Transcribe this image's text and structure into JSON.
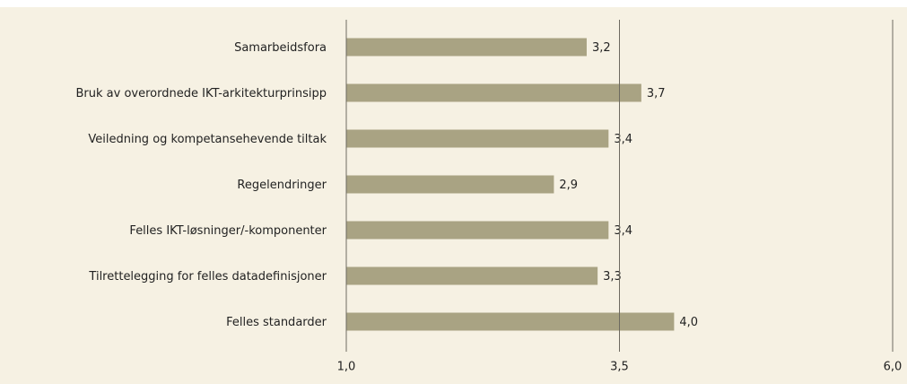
{
  "chart_data": {
    "type": "barh",
    "categories": [
      "Samarbeidsfora",
      "Bruk av overordnede IKT-arkitekturprinsipp",
      "Veiledning og kompetansehevende tiltak",
      "Regelendringer",
      "Felles IKT-løsninger/-komponenter",
      "Tilrettelegging for felles datadefinisjoner",
      "Felles standarder"
    ],
    "values": [
      3.2,
      3.7,
      3.4,
      2.9,
      3.4,
      3.3,
      4.0
    ],
    "value_labels": [
      "3,2",
      "3,7",
      "3,4",
      "2,9",
      "3,4",
      "3,3",
      "4,0"
    ],
    "color": "#a9a383",
    "xlim": [
      1.0,
      6.0
    ],
    "xticks": [
      {
        "value": 1.0,
        "label": "1,0"
      },
      {
        "value": 3.5,
        "label": "3,5"
      },
      {
        "value": 6.0,
        "label": "6,0"
      }
    ],
    "grid": true
  }
}
